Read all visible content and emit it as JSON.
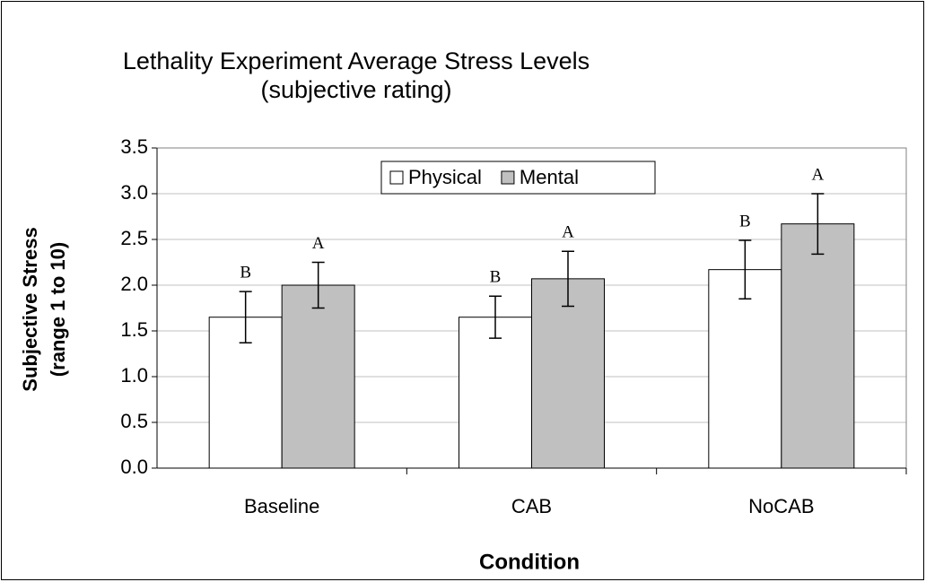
{
  "chart_data": {
    "type": "bar",
    "title": [
      "Lethality Experiment Average Stress Levels",
      "(subjective rating)"
    ],
    "xlabel": "Condition",
    "ylabel": [
      "Subjective Stress",
      "(range 1 to 10)"
    ],
    "categories": [
      "Baseline",
      "CAB",
      "NoCAB"
    ],
    "series": [
      {
        "name": "Physical",
        "color": "#ffffff",
        "values": [
          1.65,
          1.65,
          2.17
        ],
        "errors": [
          0.28,
          0.23,
          0.32
        ],
        "annotations": [
          "B",
          "B",
          "B"
        ]
      },
      {
        "name": "Mental",
        "color": "#c0c0c0",
        "values": [
          2.0,
          2.07,
          2.67
        ],
        "errors": [
          0.25,
          0.3,
          0.33
        ],
        "annotations": [
          "A",
          "A",
          "A"
        ]
      }
    ],
    "ylim": [
      0,
      3.5
    ],
    "yticks": [
      {
        "value": 0,
        "label": "0.0"
      },
      {
        "value": 0.5,
        "label": "0.5"
      },
      {
        "value": 1,
        "label": "1.0"
      },
      {
        "value": 1.5,
        "label": "1.5"
      },
      {
        "value": 2,
        "label": "2.0"
      },
      {
        "value": 2.5,
        "label": "2.5"
      },
      {
        "value": 3,
        "label": "3.0"
      },
      {
        "value": 3.5,
        "label": "3.5"
      }
    ],
    "grid": true,
    "legend": "top"
  }
}
